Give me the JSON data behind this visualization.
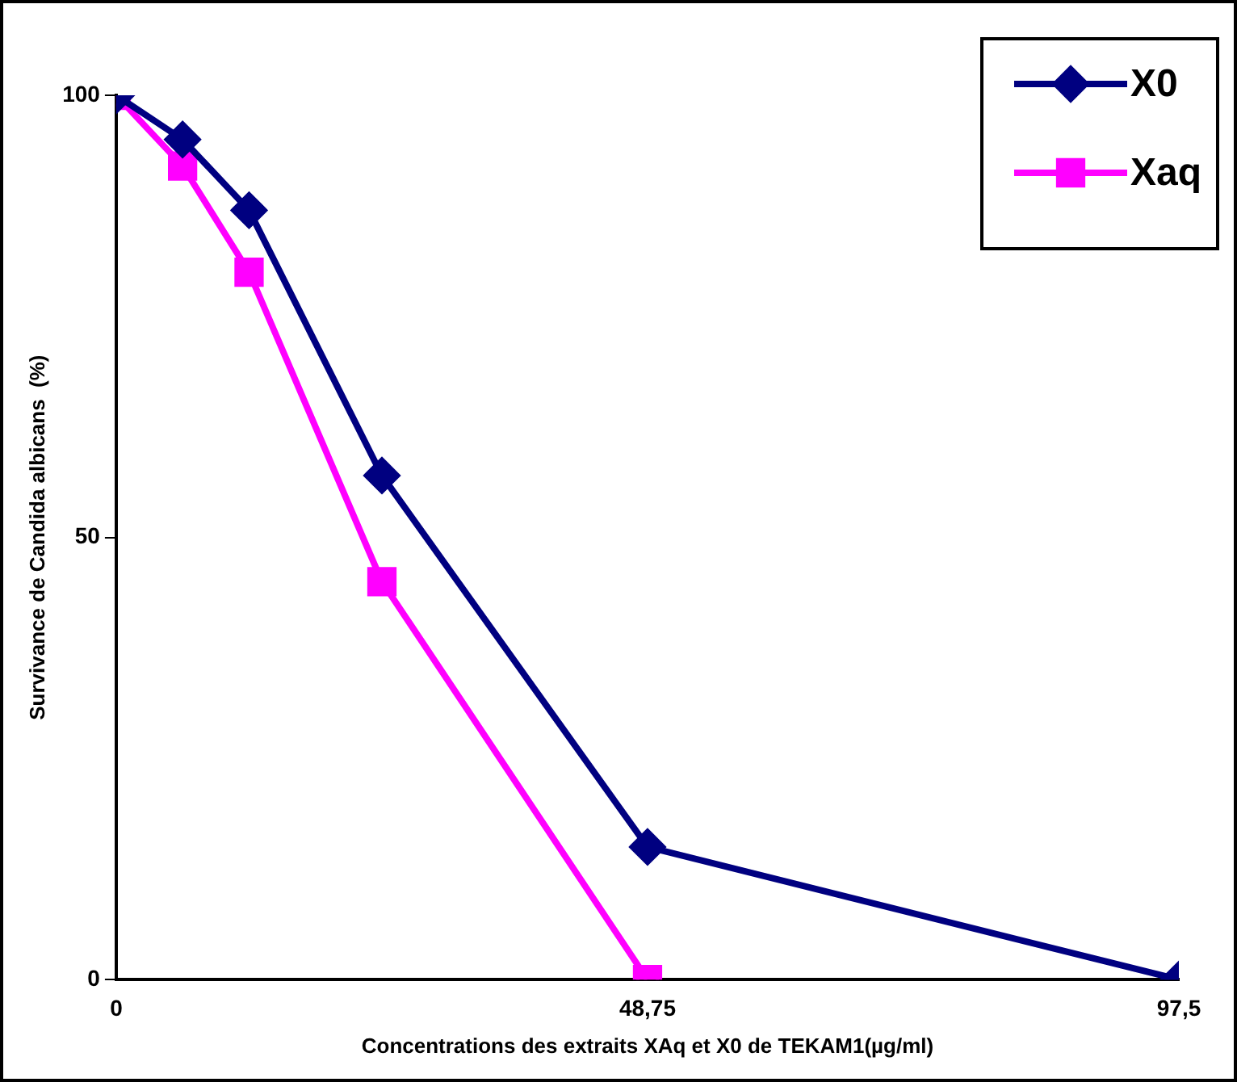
{
  "chart_data": {
    "type": "line",
    "xlabel": "Concentrations des extraits XAq et X0 de TEKAM1(µg/ml)",
    "ylabel": "Survivance de Candida albicans  (%)",
    "x": [
      0,
      6.09,
      12.19,
      24.38,
      48.75,
      97.5
    ],
    "series": [
      {
        "name": "X0",
        "color": "#000080",
        "marker": "diamond",
        "values": [
          100,
          95,
          87,
          57,
          15,
          0
        ]
      },
      {
        "name": "Xaq",
        "color": "#ff00ff",
        "marker": "square",
        "values": [
          100,
          92,
          80,
          45,
          0,
          null
        ]
      }
    ],
    "xlim": [
      0,
      97.5
    ],
    "xticks": [
      0,
      {
        "value": 48.75,
        "label": "48,75"
      },
      {
        "value": 97.5,
        "label": "97,5"
      }
    ],
    "ylim": [
      0,
      100
    ],
    "yticks": [
      0,
      50,
      100
    ],
    "grid": false,
    "legend": "top right",
    "line_style": "solid"
  }
}
